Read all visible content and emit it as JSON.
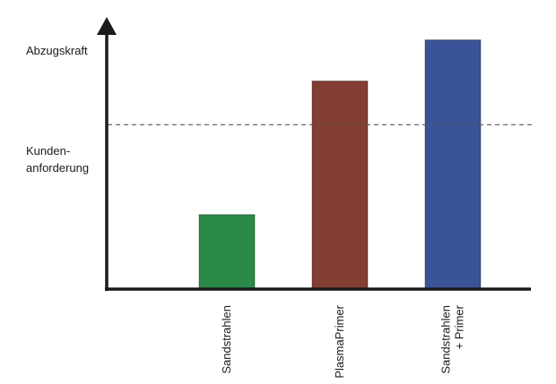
{
  "chart_data": {
    "type": "bar",
    "ylabel": "Abzugskraft",
    "categories": [
      "Sandstrahlen",
      "PlasmaPrimer",
      "Sandstrahlen\n+ Primer"
    ],
    "values": [
      0.29,
      0.81,
      0.97
    ],
    "colors": [
      "#2a8a48",
      "#833d33",
      "#3b5499"
    ],
    "ylim": [
      0,
      1
    ],
    "reference_line": {
      "label": "Kunden-\nanforderung",
      "value": 0.64,
      "style": "dashed"
    },
    "grid": false,
    "y_ticks_shown": false
  }
}
